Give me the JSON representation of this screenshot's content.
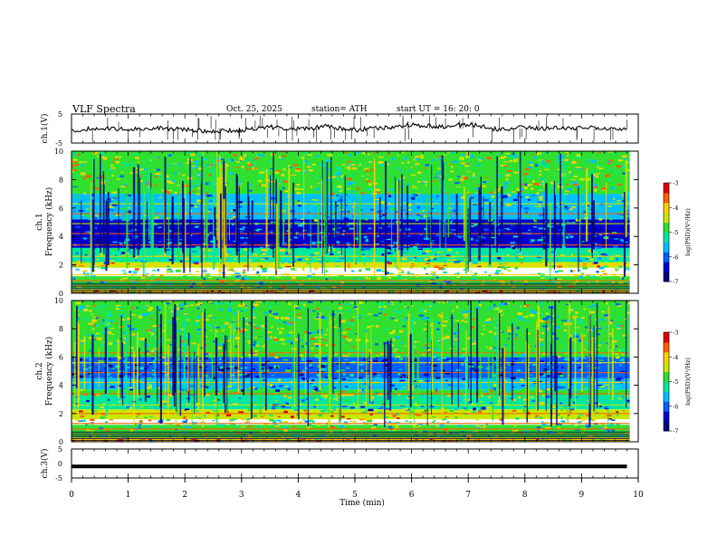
{
  "header": {
    "title": "VLF  Spectra",
    "date": "Oct. 25, 2025",
    "station": "station= ATH",
    "start": "start  UT  =   16: 20: 0"
  },
  "colors": {
    "colormap": [
      "#000080",
      "#0000d0",
      "#0060ff",
      "#00c0ff",
      "#00e8a0",
      "#30e030",
      "#c8e800",
      "#ffd000",
      "#ff6000",
      "#e00000",
      "#ffffff"
    ],
    "trace": "#000000"
  },
  "chart_data": [
    {
      "id": "ch1-waveform",
      "type": "line",
      "ylabel": "ch.1(V)",
      "ylim": [
        -5,
        5
      ],
      "yticks": [
        "5",
        "-5"
      ],
      "xlim": [
        0,
        10
      ],
      "signal": "noisy trace fluctuating around about -0.5 V with occasional spikes",
      "x": [
        0,
        0.5,
        1,
        1.5,
        2,
        2.5,
        3,
        3.5,
        4,
        4.5,
        5,
        5.5,
        6,
        6.5,
        7,
        7.5,
        8,
        8.5,
        9,
        9.5,
        9.8
      ],
      "values": [
        -0.5,
        0.0,
        -0.3,
        0.2,
        -0.4,
        -1.0,
        -0.5,
        0.5,
        -0.2,
        0.8,
        -0.6,
        0.3,
        1.2,
        0.5,
        1.5,
        -0.2,
        0.4,
        0.0,
        0.3,
        0.2,
        -0.3
      ]
    },
    {
      "id": "ch1-spectrogram",
      "type": "heatmap",
      "ylabel": "ch.1\nFrequency  (kHz)",
      "ylim": [
        0,
        10
      ],
      "yticks": [
        "0",
        "2",
        "4",
        "6",
        "8",
        "10"
      ],
      "xlim": [
        0,
        10
      ],
      "colorbar": {
        "label": "log(PSD)(V²/Hz)",
        "range": [
          -7,
          -3
        ],
        "ticks": [
          "-3",
          "-4",
          "-5",
          "-6",
          "-7"
        ]
      },
      "bands": [
        {
          "from": 0.0,
          "to": 0.3,
          "level": -4.0
        },
        {
          "from": 0.3,
          "to": 1.2,
          "level": -5.0
        },
        {
          "from": 1.8,
          "to": 2.2,
          "level": -4.5
        },
        {
          "from": 2.2,
          "to": 3.2,
          "level": -5.2
        },
        {
          "from": 3.2,
          "to": 5.2,
          "level": -6.3
        },
        {
          "from": 5.2,
          "to": 7.0,
          "level": -5.4
        },
        {
          "from": 7.0,
          "to": 10.0,
          "level": -4.8
        }
      ]
    },
    {
      "id": "ch2-spectrogram",
      "type": "heatmap",
      "ylabel": "ch.2\nFrequency  (kHz)",
      "ylim": [
        0,
        10
      ],
      "yticks": [
        "0",
        "2",
        "4",
        "6",
        "8",
        "10"
      ],
      "xlim": [
        0,
        10
      ],
      "colorbar": {
        "label": "log(PSD)(V²/Hz)",
        "range": [
          -7,
          -3
        ],
        "ticks": [
          "-3",
          "-4",
          "-5",
          "-6",
          "-7"
        ]
      },
      "bands": [
        {
          "from": 0.0,
          "to": 0.3,
          "level": -4.2
        },
        {
          "from": 0.3,
          "to": 1.2,
          "level": -5.0
        },
        {
          "from": 1.6,
          "to": 2.3,
          "level": -4.3
        },
        {
          "from": 2.3,
          "to": 3.3,
          "level": -5.3
        },
        {
          "from": 3.3,
          "to": 3.7,
          "level": -4.8
        },
        {
          "from": 3.7,
          "to": 4.5,
          "level": -5.5
        },
        {
          "from": 4.5,
          "to": 6.0,
          "level": -6.1
        },
        {
          "from": 6.0,
          "to": 10.0,
          "level": -5.0
        }
      ]
    },
    {
      "id": "ch3-waveform",
      "type": "line",
      "ylabel": "ch.3(V)",
      "ylim": [
        -5,
        5
      ],
      "yticks": [
        "5",
        "0",
        "-5"
      ],
      "xlim": [
        0,
        10
      ],
      "x": [
        0,
        9.8
      ],
      "values": [
        -1.0,
        -1.0
      ]
    }
  ],
  "xaxis": {
    "label": "Time  (min)",
    "ticks": [
      "0",
      "1",
      "2",
      "3",
      "4",
      "5",
      "6",
      "7",
      "8",
      "9",
      "10"
    ]
  }
}
